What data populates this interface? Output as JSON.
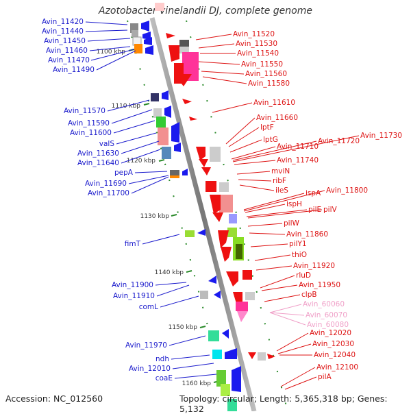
{
  "title": "Azotobacter vinelandii DJ, complete genome",
  "footer": {
    "accession": "Accession: NC_012560",
    "stats": "Topology: circular; Length: 5,365,318 bp; Genes: 5,132"
  },
  "colors": {
    "backbone": "#888888",
    "left_label": "#1a1acc",
    "right_label": "#dd1111",
    "rna_label": "#f0a0c8",
    "forward_arrow": "#ee1111",
    "reverse_arrow": "#1a1aee",
    "scale_tick": "#2a8a2a"
  },
  "scale_labels": [
    "1100 kbp",
    "1110 kbp",
    "1120 kbp",
    "1130 kbp",
    "1140 kbp",
    "1150 kbp",
    "1160 kbp"
  ],
  "left_genes": [
    "Avin_11420",
    "Avin_11440",
    "Avin_11450",
    "Avin_11460",
    "Avin_11470",
    "Avin_11490",
    "Avin_11570",
    "Avin_11590",
    "Avin_11600",
    "valS",
    "Avin_11630",
    "Avin_11640",
    "pepA",
    "Avin_11690",
    "Avin_11700",
    "fimT",
    "Avin_11900",
    "Avin_11910",
    "comL",
    "Avin_11970",
    "ndh",
    "Avin_12010",
    "coaE"
  ],
  "right_genes": [
    "Avin_11520",
    "Avin_11530",
    "Avin_11540",
    "Avin_11550",
    "Avin_11560",
    "Avin_11580",
    "Avin_11610",
    "Avin_11660",
    "lptF",
    "lptG",
    "Avin_11710",
    "Avin_11720",
    "Avin_11730",
    "Avin_11740",
    "mviN",
    "ribF",
    "ileS",
    "ispA",
    "Avin_11800",
    "ispH",
    "pilE",
    "pilV",
    "pilW",
    "Avin_11860",
    "pilY1",
    "thiO",
    "Avin_11920",
    "rluD",
    "Avin_11950",
    "clpB",
    "Avin_60060",
    "Avin_60070",
    "Avin_60080",
    "Avin_12020",
    "Avin_12030",
    "Avin_12040",
    "Avin_12100",
    "pilA"
  ]
}
